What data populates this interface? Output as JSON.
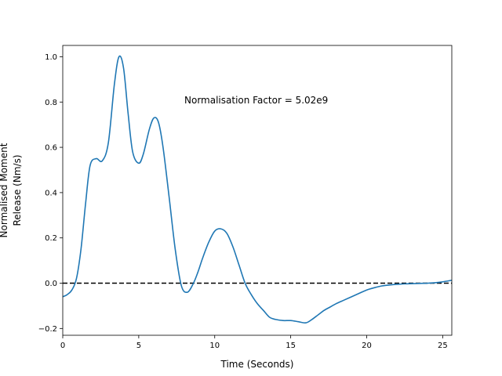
{
  "chart_data": {
    "type": "line",
    "title": "",
    "xlabel": "Time (Seconds)",
    "ylabel_lines": [
      "Normalised Moment",
      "Release (Nm/s)"
    ],
    "xlim": [
      0,
      25.6
    ],
    "ylim": [
      -0.23,
      1.05
    ],
    "xticks": [
      0,
      5,
      10,
      15,
      20,
      25
    ],
    "yticks": [
      -0.2,
      0.0,
      0.2,
      0.4,
      0.6,
      0.8,
      1.0
    ],
    "xtick_labels": [
      "0",
      "5",
      "10",
      "15",
      "20",
      "25"
    ],
    "ytick_labels": [
      "−0.2",
      "0.0",
      "0.2",
      "0.4",
      "0.6",
      "0.8",
      "1.0"
    ],
    "grid": false,
    "annotation": "Normalisation Factor = 5.02e9",
    "line_color": "#1f77b4",
    "reference_line": {
      "y": 0.0,
      "style": "dashed",
      "color": "#000000"
    },
    "series": [
      {
        "x": [
          0,
          0.3,
          0.6,
          0.9,
          1.2,
          1.5,
          1.8,
          2.2,
          2.6,
          3.0,
          3.4,
          3.7,
          4.0,
          4.3,
          4.6,
          5.0,
          5.3,
          5.7,
          6.0,
          6.3,
          6.6,
          7.0,
          7.4,
          7.8,
          8.2,
          8.6,
          8.9,
          9.2,
          9.6,
          10.0,
          10.4,
          10.8,
          11.2,
          11.6,
          12.0,
          12.4,
          12.8,
          13.2,
          13.6,
          14.0,
          14.5,
          15.0,
          15.5,
          16.0,
          16.4,
          16.8,
          17.2,
          17.6,
          18.0,
          18.5,
          19.0,
          19.5,
          20.0,
          20.5,
          21.0,
          21.5,
          22.0,
          22.5,
          23.0,
          23.5,
          24.0,
          24.5,
          25.0,
          25.6
        ],
        "y": [
          -0.06,
          -0.05,
          -0.03,
          0.02,
          0.15,
          0.35,
          0.52,
          0.55,
          0.54,
          0.62,
          0.88,
          1.0,
          0.95,
          0.75,
          0.58,
          0.53,
          0.57,
          0.68,
          0.73,
          0.71,
          0.6,
          0.38,
          0.15,
          -0.01,
          -0.04,
          0.0,
          0.05,
          0.11,
          0.18,
          0.23,
          0.24,
          0.22,
          0.16,
          0.08,
          0.0,
          -0.05,
          -0.09,
          -0.12,
          -0.15,
          -0.16,
          -0.165,
          -0.165,
          -0.17,
          -0.175,
          -0.16,
          -0.14,
          -0.12,
          -0.105,
          -0.09,
          -0.075,
          -0.06,
          -0.045,
          -0.03,
          -0.02,
          -0.012,
          -0.008,
          -0.005,
          -0.003,
          -0.002,
          -0.001,
          0.0,
          0.002,
          0.006,
          0.013
        ]
      }
    ]
  }
}
